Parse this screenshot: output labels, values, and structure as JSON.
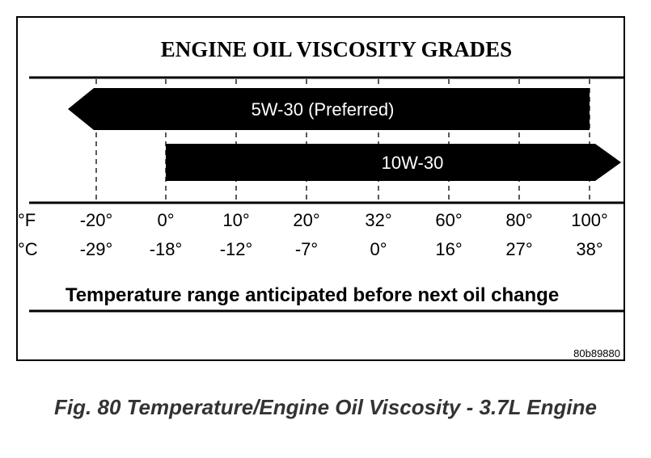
{
  "chart_data": {
    "type": "range-bar",
    "title": "ENGINE OIL VISCOSITY GRADES",
    "xlabel": "Temperature range anticipated before next oil change",
    "units": [
      "°F",
      "°C"
    ],
    "ticks_f": [
      "-20°",
      "0°",
      "10°",
      "20°",
      "32°",
      "60°",
      "80°",
      "100°"
    ],
    "ticks_c": [
      "-29°",
      "-18°",
      "-12°",
      "-7°",
      "0°",
      "16°",
      "27°",
      "38°"
    ],
    "series": [
      {
        "name": "5W-30 (Preferred)",
        "start_tick": null,
        "end_tick": 7,
        "open_start": true,
        "open_end": false
      },
      {
        "name": "10W-30",
        "start_tick": 1,
        "end_tick": null,
        "open_start": false,
        "open_end": true
      }
    ],
    "code": "80b89880"
  },
  "figure": {
    "caption": "Fig. 80 Temperature/Engine Oil Viscosity - 3.7L Engine"
  }
}
